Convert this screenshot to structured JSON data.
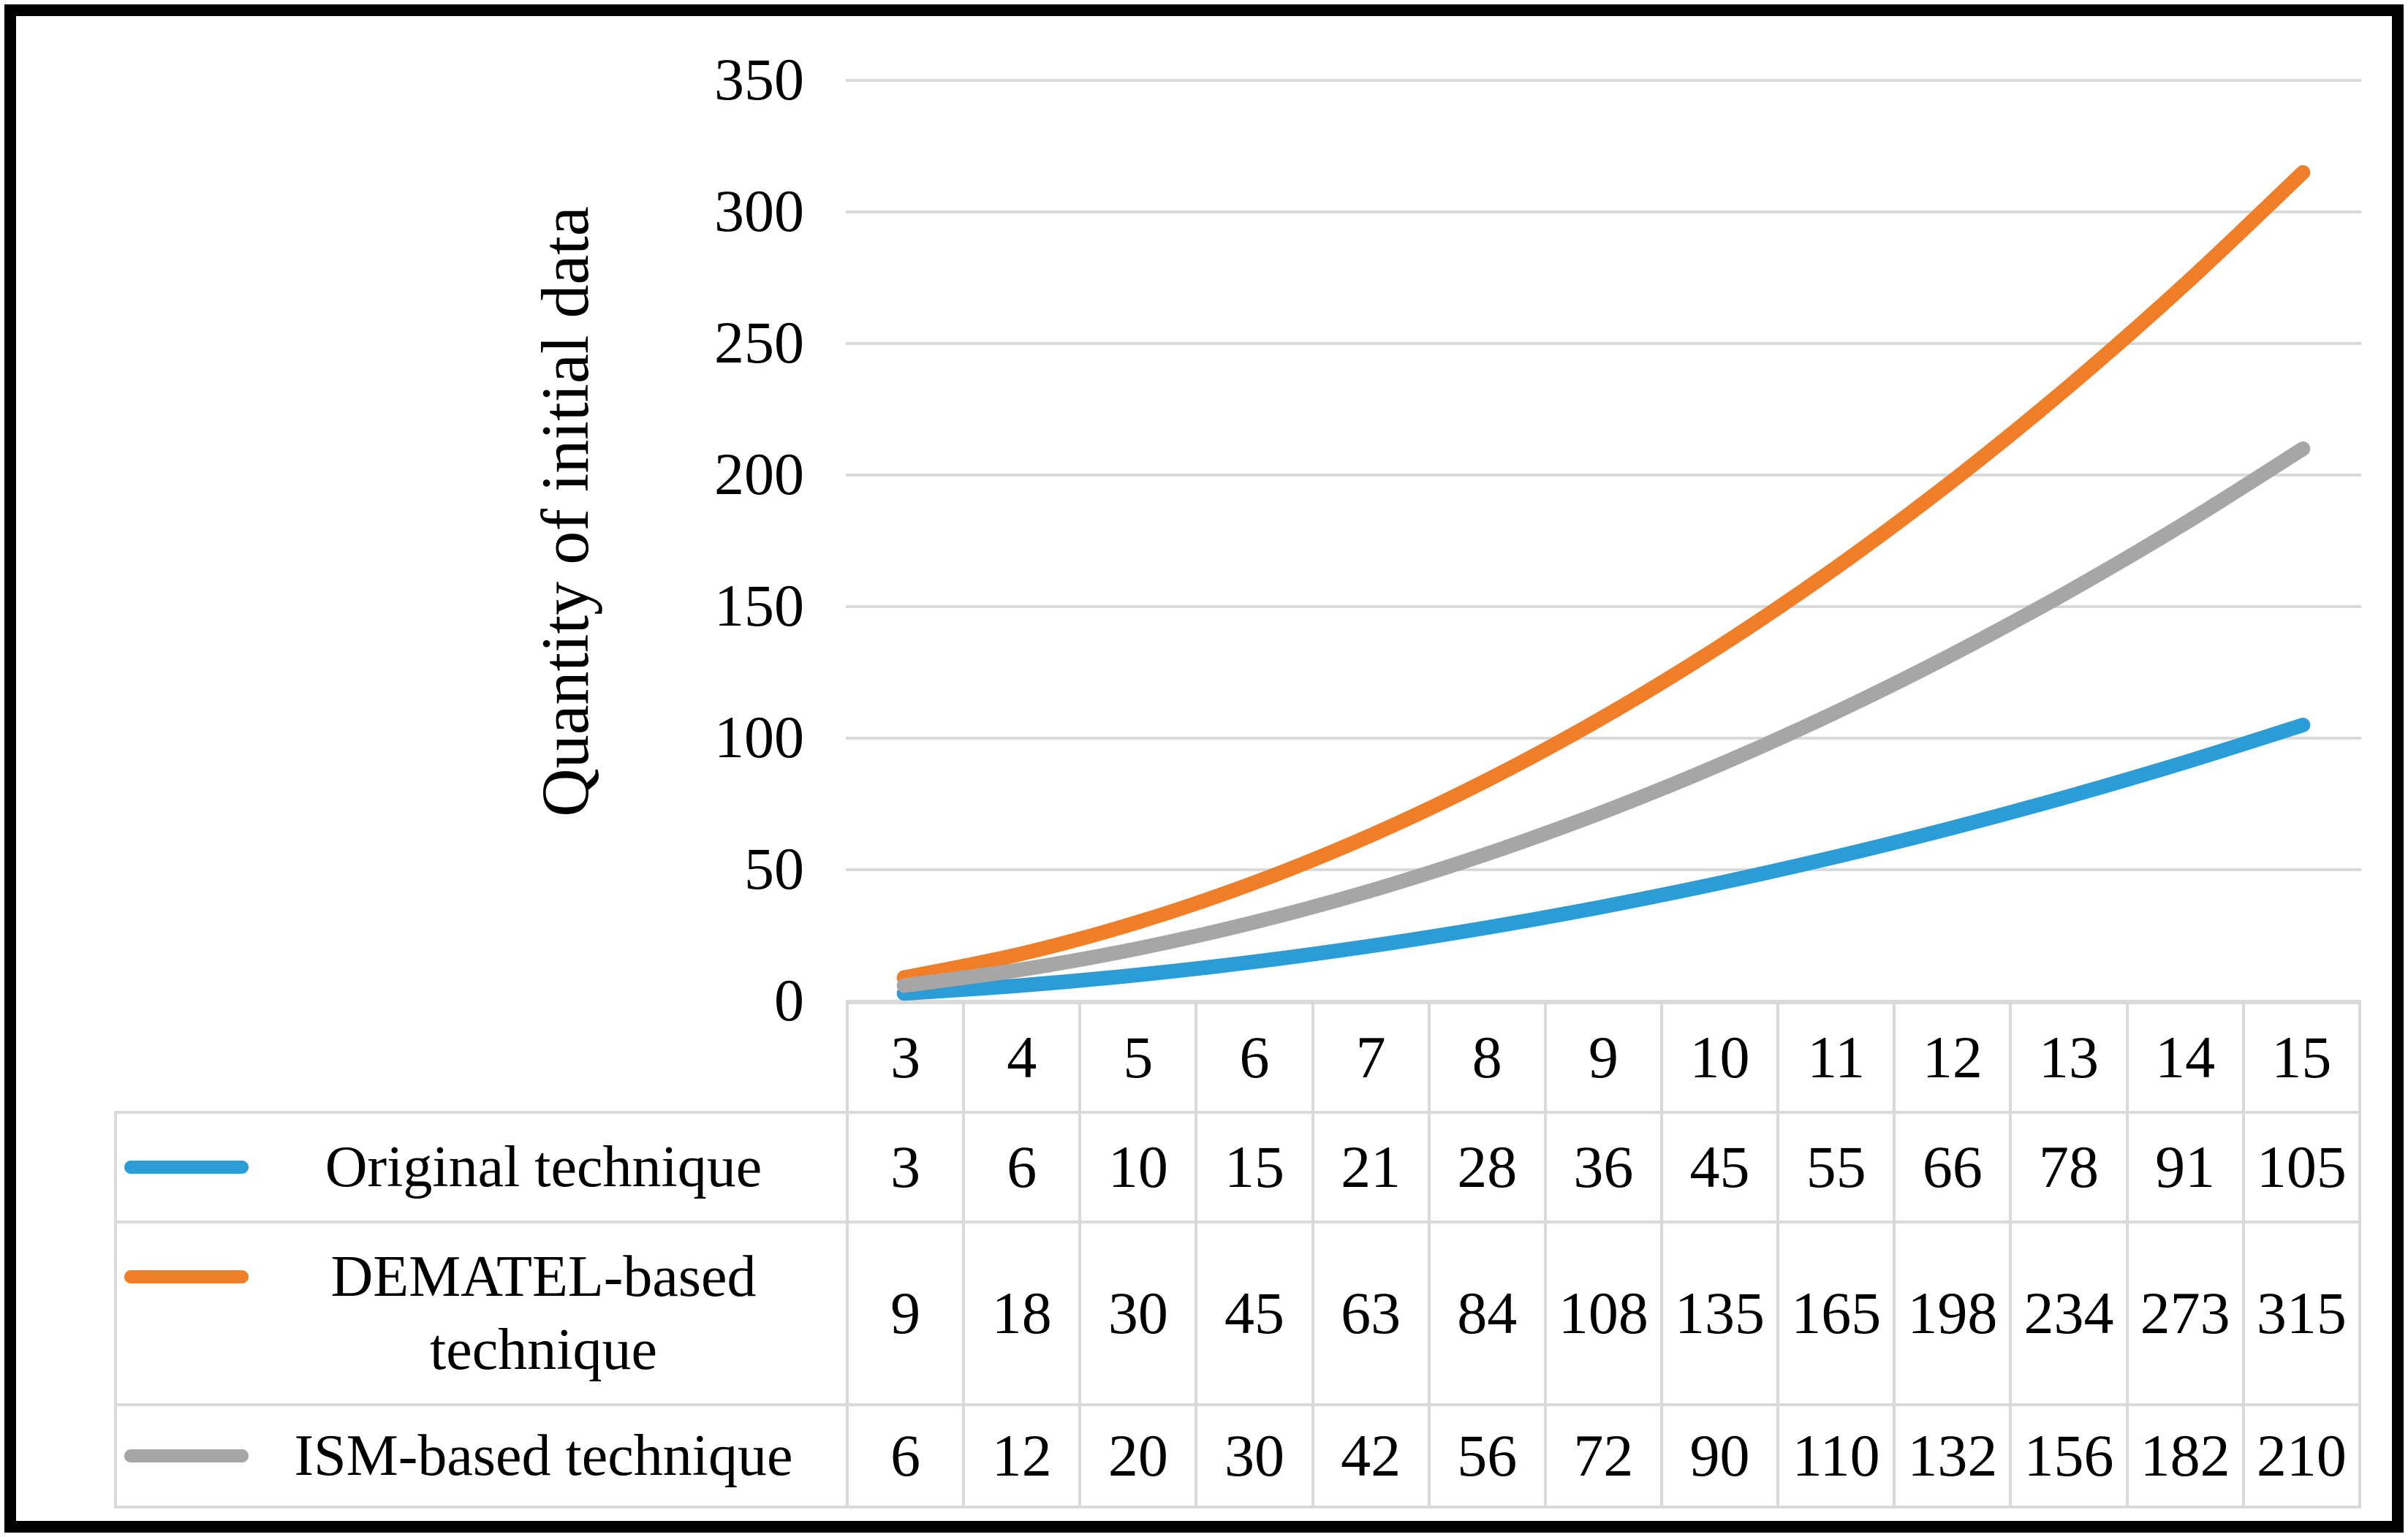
{
  "chart_data": {
    "type": "line",
    "title": "",
    "categories": [
      3,
      4,
      5,
      6,
      7,
      8,
      9,
      10,
      11,
      12,
      13,
      14,
      15
    ],
    "series": [
      {
        "name": "Original technique",
        "color": "#2B9CD5",
        "values": [
          3,
          6,
          10,
          15,
          21,
          28,
          36,
          45,
          55,
          66,
          78,
          91,
          105
        ]
      },
      {
        "name": "DEMATEL-based technique",
        "color": "#F07D28",
        "values": [
          9,
          18,
          30,
          45,
          63,
          84,
          108,
          135,
          165,
          198,
          234,
          273,
          315
        ]
      },
      {
        "name": "ISM-based technique",
        "color": "#A6A6A6",
        "values": [
          6,
          12,
          20,
          30,
          42,
          56,
          72,
          90,
          110,
          132,
          156,
          182,
          210
        ]
      }
    ],
    "xlabel": "",
    "ylabel": "Quantity of initial data",
    "ylim": [
      0,
      350
    ],
    "ytick_step": 50,
    "ytick_labels": [
      350,
      300,
      250,
      200,
      150,
      100,
      50,
      0
    ],
    "grid": "horizontal-gridlines-only",
    "gridline_color": "#D9D9D9",
    "table_border_color": "#D9D9D9",
    "line_style": "smooth, thick, round caps",
    "legend_position": "data-table-row-headers-left"
  }
}
